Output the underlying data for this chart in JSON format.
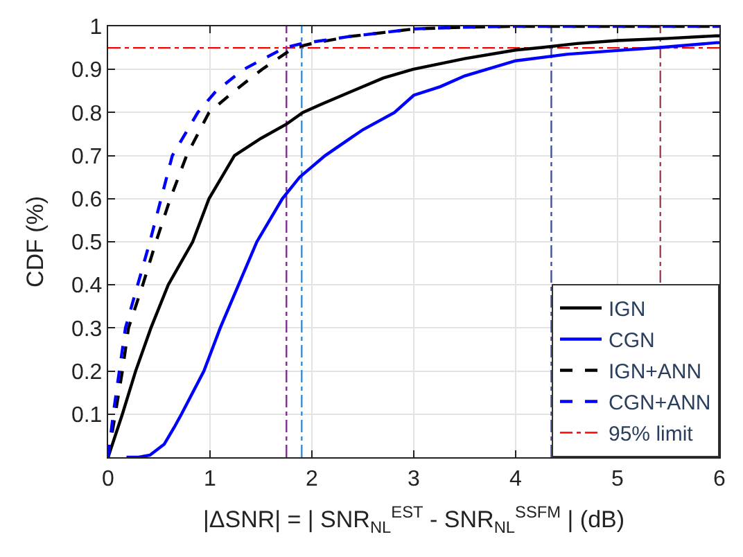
{
  "chart_data": {
    "type": "line",
    "xlabel": "|ΔSNR| = | SNR$_{NL}$$^{EST}$ - SNR$_{NL}$$^{SSFM}$ | (dB)",
    "ylabel": "CDF (%)",
    "xlim": [
      0,
      6
    ],
    "xticks": [
      0,
      1,
      2,
      3,
      4,
      5,
      6
    ],
    "ylim": [
      0,
      1
    ],
    "yticks": [
      0.1,
      0.2,
      0.3,
      0.4,
      0.5,
      0.6,
      0.7,
      0.8,
      0.9,
      1
    ],
    "grid": true,
    "legend": "bottom right",
    "series": [
      {
        "name": "IGN",
        "color": "#000000",
        "line_style": "solid",
        "x": [
          0,
          0.14,
          0.27,
          0.42,
          0.59,
          0.83,
          0.99,
          1.24,
          1.5,
          1.75,
          1.91,
          2.1,
          2.4,
          2.7,
          2.99,
          3.5,
          4.0,
          4.26,
          4.6,
          5.0,
          5.5,
          5.97,
          6.0
        ],
        "values": [
          0,
          0.1,
          0.2,
          0.3,
          0.4,
          0.5,
          0.6,
          0.7,
          0.74,
          0.773,
          0.8,
          0.82,
          0.85,
          0.88,
          0.9,
          0.925,
          0.945,
          0.951,
          0.96,
          0.967,
          0.972,
          0.978,
          0.978
        ]
      },
      {
        "name": "CGN",
        "color": "#0000ff",
        "line_style": "solid",
        "x": [
          0.18,
          0.3,
          0.41,
          0.55,
          0.65,
          0.72,
          0.94,
          1.1,
          1.28,
          1.46,
          1.71,
          1.88,
          2.13,
          2.5,
          2.81,
          3.0,
          3.26,
          3.5,
          4.0,
          4.5,
          5.0,
          5.42,
          5.97,
          6.0
        ],
        "values": [
          0,
          0,
          0.005,
          0.03,
          0.07,
          0.1,
          0.2,
          0.3,
          0.4,
          0.5,
          0.6,
          0.65,
          0.7,
          0.76,
          0.8,
          0.84,
          0.86,
          0.885,
          0.92,
          0.935,
          0.944,
          0.951,
          0.962,
          0.962
        ]
      },
      {
        "name": "IGN+ANN",
        "color": "#000000",
        "line_style": "dashed",
        "x": [
          0,
          0.07,
          0.14,
          0.2,
          0.34,
          0.47,
          0.61,
          0.77,
          0.99,
          1.24,
          1.51,
          1.82,
          2.0,
          2.36,
          3.0,
          3.5,
          4.0,
          5.0,
          6.0
        ],
        "values": [
          0,
          0.1,
          0.2,
          0.3,
          0.4,
          0.5,
          0.6,
          0.7,
          0.8,
          0.85,
          0.9,
          0.95,
          0.96,
          0.976,
          0.994,
          0.998,
          1,
          1,
          1
        ]
      },
      {
        "name": "CGN+ANN",
        "color": "#0000ff",
        "line_style": "dashed",
        "x": [
          0,
          0.05,
          0.11,
          0.17,
          0.29,
          0.41,
          0.52,
          0.63,
          0.88,
          1.06,
          1.33,
          1.73,
          1.9,
          2.36,
          3.0,
          3.5,
          4.0,
          5.0,
          6.0
        ],
        "values": [
          0,
          0.1,
          0.2,
          0.3,
          0.4,
          0.5,
          0.6,
          0.7,
          0.8,
          0.85,
          0.9,
          0.95,
          0.96,
          0.976,
          0.994,
          0.998,
          1,
          1,
          1
        ]
      }
    ],
    "ref_lines": [
      {
        "axis": "y",
        "value": 0.95,
        "label": "95% limit",
        "color": "#ff0000",
        "line_style": "dashdot"
      },
      {
        "axis": "x",
        "value": 1.75,
        "color": "#7e2f8e",
        "line_style": "dashdot"
      },
      {
        "axis": "x",
        "value": 1.9,
        "color": "#3a8ad0",
        "line_style": "dashdot"
      },
      {
        "axis": "x",
        "value": 4.35,
        "color": "#40509a",
        "line_style": "dashdot"
      },
      {
        "axis": "x",
        "value": 5.42,
        "color": "#a0404e",
        "line_style": "dashdot"
      }
    ]
  }
}
